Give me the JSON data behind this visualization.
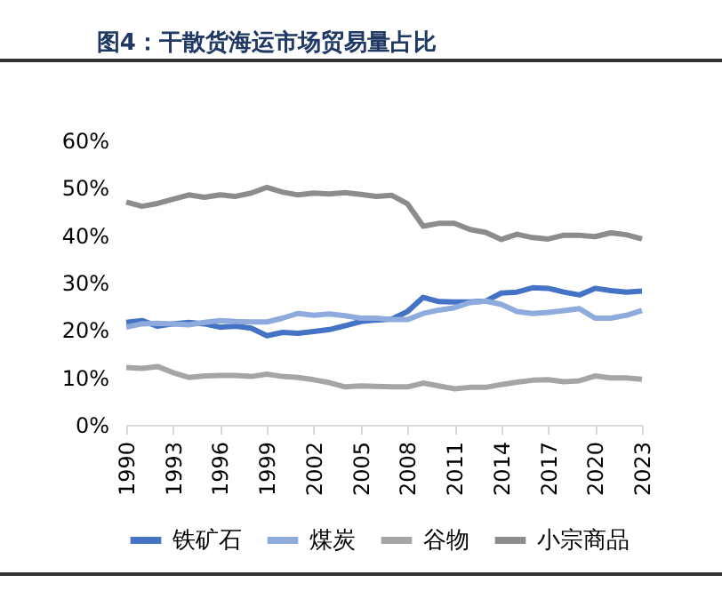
{
  "chart_data": {
    "type": "line",
    "title": "图4：干散货海运市场贸易量占比",
    "categories": [
      "1990",
      null,
      null,
      "1993",
      null,
      null,
      "1996",
      null,
      null,
      "1999",
      null,
      null,
      "2002",
      null,
      null,
      "2005",
      null,
      null,
      "2008",
      null,
      null,
      "2011",
      null,
      null,
      "2014",
      null,
      null,
      "2017",
      null,
      null,
      "2020",
      null,
      null,
      "2023"
    ],
    "series": [
      {
        "name": "铁矿石",
        "color": "#4472c4",
        "values": [
          21.6,
          22.0,
          20.8,
          21.3,
          21.6,
          21.3,
          20.6,
          20.8,
          20.4,
          18.8,
          19.5,
          19.3,
          19.7,
          20.1,
          20.9,
          21.8,
          22.1,
          22.3,
          23.9,
          26.9,
          26.0,
          25.9,
          25.9,
          26.1,
          27.8,
          28.0,
          28.9,
          28.8,
          28.0,
          27.4,
          28.8,
          28.3,
          28.0,
          28.2
        ]
      },
      {
        "name": "煤炭",
        "color": "#8faadc",
        "values": [
          20.6,
          21.3,
          21.4,
          21.3,
          21.1,
          21.6,
          22.0,
          21.8,
          21.7,
          21.7,
          22.5,
          23.5,
          23.1,
          23.4,
          23.0,
          22.5,
          22.5,
          22.2,
          22.2,
          23.5,
          24.2,
          24.7,
          25.8,
          26.1,
          25.4,
          23.9,
          23.5,
          23.7,
          24.1,
          24.5,
          22.5,
          22.5,
          23.1,
          24.1
        ]
      },
      {
        "name": "谷物",
        "color": "#a5a5a5",
        "values": [
          12.1,
          11.9,
          12.3,
          11.0,
          10.0,
          10.3,
          10.4,
          10.4,
          10.2,
          10.7,
          10.2,
          10.0,
          9.5,
          8.9,
          8.0,
          8.2,
          8.1,
          8.0,
          8.0,
          8.8,
          8.2,
          7.6,
          7.9,
          7.9,
          8.5,
          9.0,
          9.4,
          9.5,
          9.1,
          9.3,
          10.3,
          9.9,
          9.9,
          9.6
        ]
      },
      {
        "name": "小宗商品",
        "color": "#8c8c8c",
        "values": [
          47.0,
          46.1,
          46.7,
          47.6,
          48.5,
          48.0,
          48.5,
          48.2,
          48.9,
          50.1,
          49.1,
          48.5,
          48.9,
          48.7,
          49.0,
          48.6,
          48.2,
          48.4,
          46.6,
          41.9,
          42.5,
          42.5,
          41.2,
          40.6,
          39.1,
          40.2,
          39.5,
          39.2,
          40.0,
          40.0,
          39.7,
          40.5,
          40.1,
          39.2
        ]
      }
    ],
    "ylim": [
      0,
      60
    ],
    "yticks": [
      {
        "value": 0,
        "label": "0%"
      },
      {
        "value": 10,
        "label": "10%"
      },
      {
        "value": 20,
        "label": "20%"
      },
      {
        "value": 30,
        "label": "30%"
      },
      {
        "value": 40,
        "label": "40%"
      },
      {
        "value": 50,
        "label": "50%"
      },
      {
        "value": 60,
        "label": "60%"
      }
    ],
    "grid": false,
    "legend": "bottom",
    "line_style": "solid",
    "marker": "none"
  }
}
